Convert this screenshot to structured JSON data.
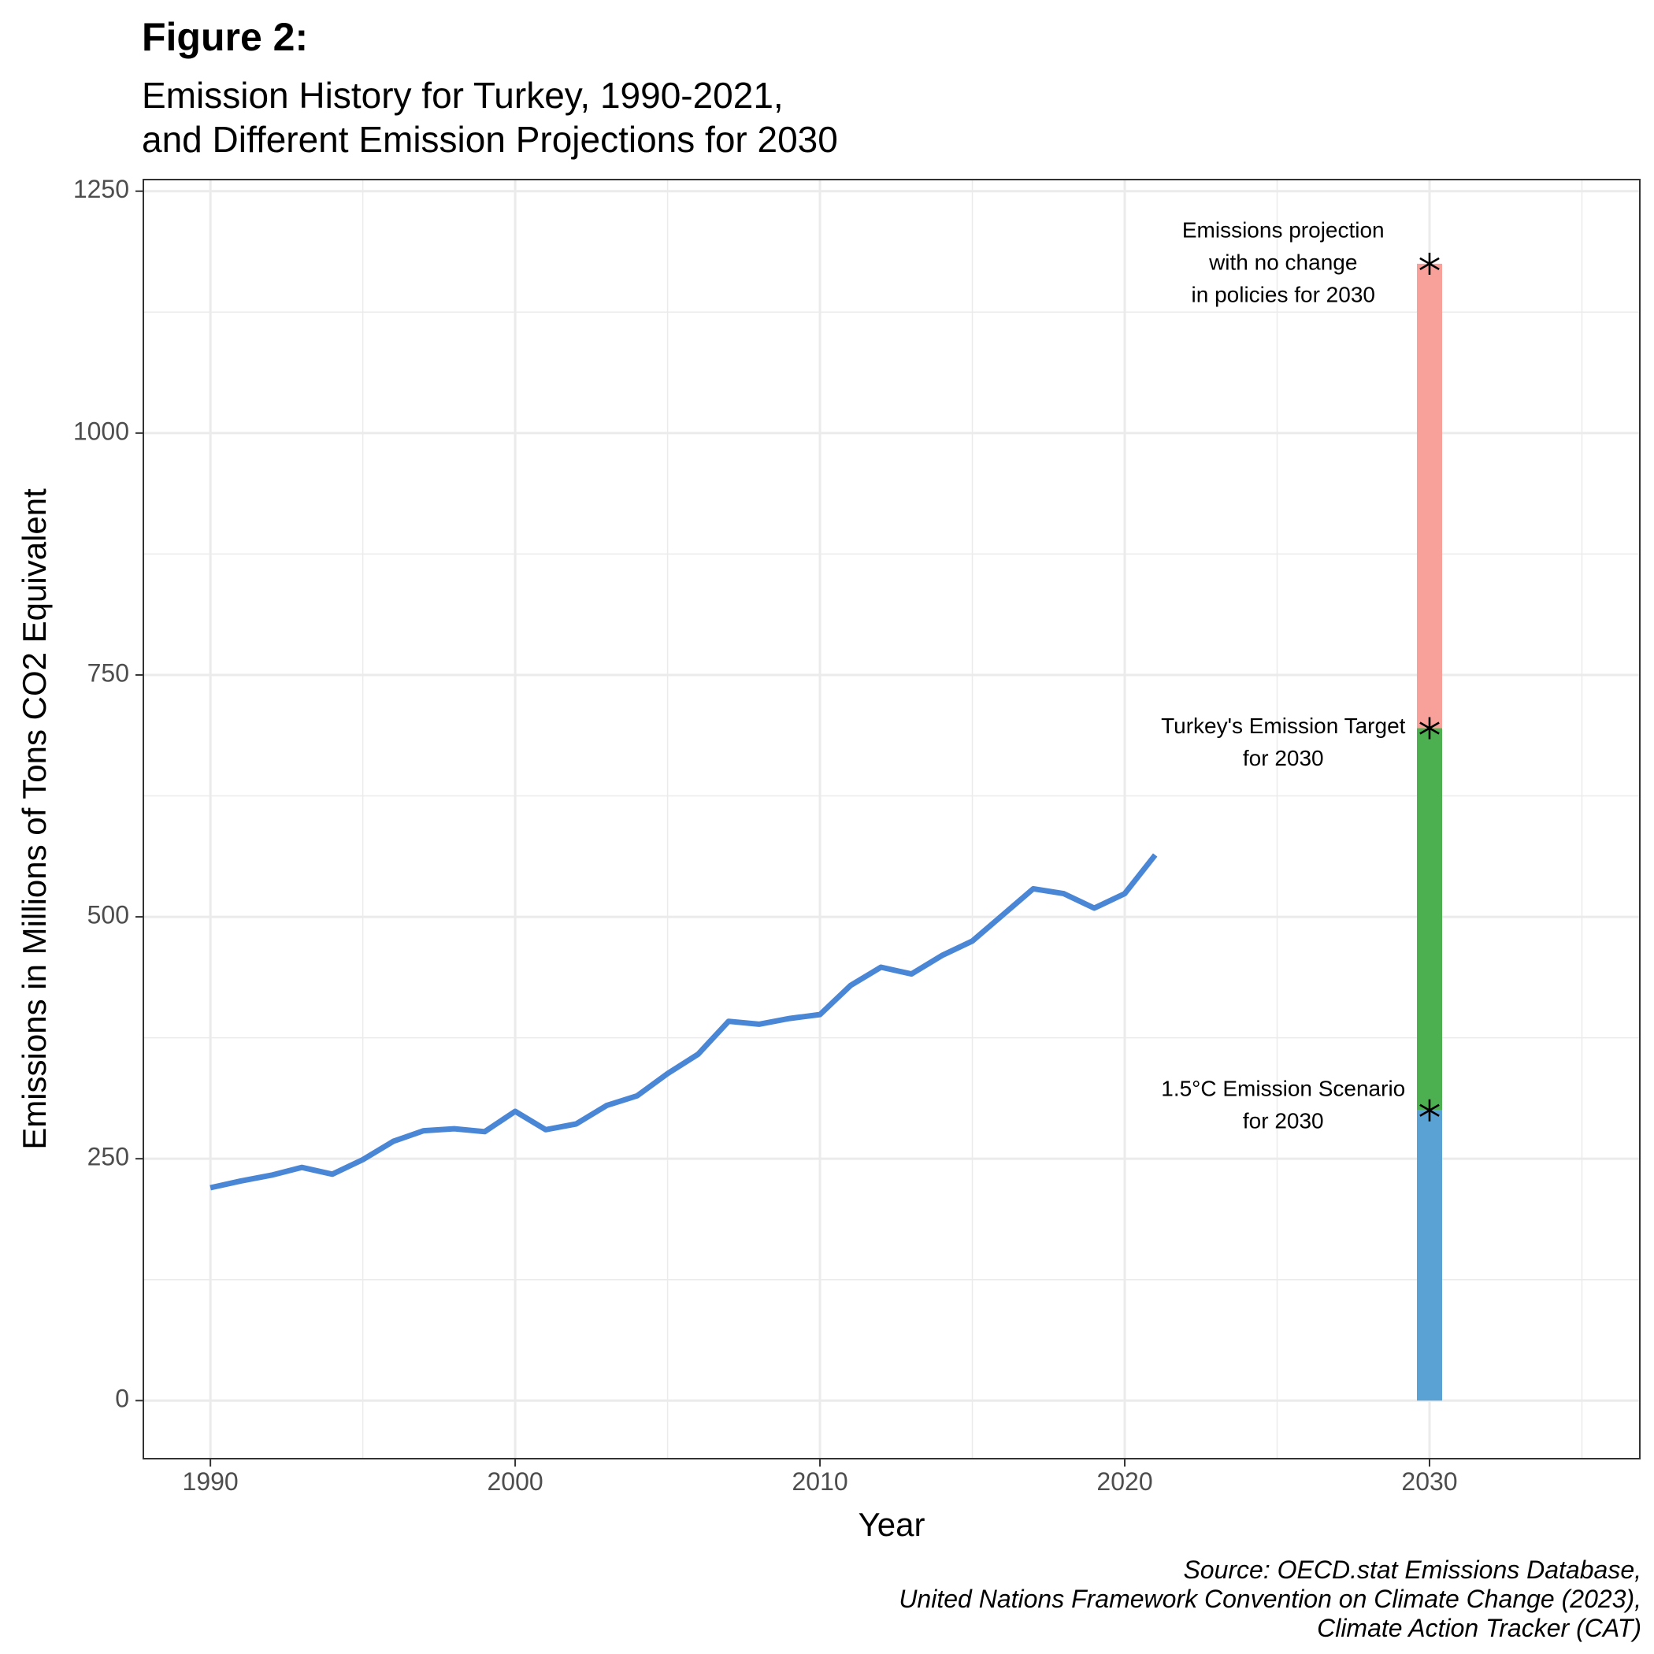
{
  "title": "Figure 2:",
  "subtitle_lines": [
    "Emission History for Turkey, 1990-2021,",
    "and Different Emission Projections for 2030"
  ],
  "caption_lines": [
    "Source: OECD.stat Emissions Database,",
    "United Nations Framework Convention on Climate Change (2023),",
    "Climate Action Tracker (CAT)"
  ],
  "colors": {
    "history_line": "#4A86D6",
    "segment_low": "#5AA2D4",
    "segment_mid": "#4CAF50",
    "segment_high": "#F7A19A"
  },
  "chart_data": {
    "type": "line",
    "xlabel": "Year",
    "ylabel": "Emissions in Millions of Tons CO2 Equivalent",
    "xlim": [
      1987.8,
      2036.9
    ],
    "ylim": [
      -60,
      1262
    ],
    "x_ticks": [
      "1990",
      "2000",
      "2010",
      "2020",
      "2030"
    ],
    "y_ticks": [
      "0",
      "250",
      "500",
      "750",
      "1000",
      "1250"
    ],
    "grid": true,
    "series": [
      {
        "x": [
          1990,
          1991,
          1992,
          1993,
          1994,
          1995,
          1996,
          1997,
          1998,
          1999,
          2000,
          2001,
          2002,
          2003,
          2004,
          2005,
          2006,
          2007,
          2008,
          2009,
          2010,
          2011,
          2012,
          2013,
          2014,
          2015,
          2016,
          2017,
          2018,
          2019,
          2020,
          2021
        ],
        "y": [
          220,
          227,
          233,
          241,
          234,
          249,
          268,
          279,
          281,
          278,
          299,
          280,
          286,
          305,
          315,
          338,
          358,
          392,
          389,
          395,
          399,
          429,
          448,
          441,
          460,
          475,
          502,
          529,
          524,
          509,
          524,
          564
        ]
      }
    ],
    "projection_bars": [
      {
        "x": 2030,
        "from": 0,
        "to": 300
      },
      {
        "x": 2030,
        "from": 300,
        "to": 695
      },
      {
        "x": 2030,
        "from": 695,
        "to": 1175
      }
    ],
    "markers": [
      {
        "x": 2030,
        "y": 1175
      },
      {
        "x": 2030,
        "y": 695
      },
      {
        "x": 2030,
        "y": 300
      }
    ],
    "annotations": [
      {
        "x": 2025.2,
        "y": 1175,
        "lines": [
          "Emissions projection",
          "with no change",
          "in policies for 2030"
        ]
      },
      {
        "x": 2025.2,
        "y": 679,
        "lines": [
          "Turkey's Emission Target",
          "for 2030"
        ]
      },
      {
        "x": 2025.2,
        "y": 304,
        "lines": [
          "1.5°C Emission Scenario",
          "for 2030"
        ]
      }
    ]
  }
}
